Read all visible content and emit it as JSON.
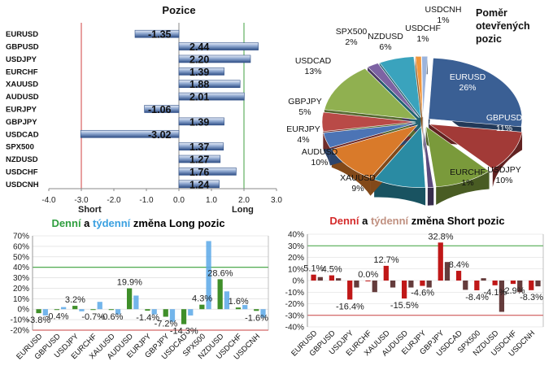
{
  "positions_chart": {
    "title": "Pozice",
    "short_label": "Short",
    "long_label": "Long",
    "xlim": [
      -4.0,
      3.0
    ],
    "ticks": [
      "-4.0",
      "-3.0",
      "-2.0",
      "-1.0",
      "0.0",
      "1.0",
      "2.0",
      "3.0"
    ],
    "rows": [
      {
        "label": "EURUSD",
        "value": -1.35,
        "text": "-1.35"
      },
      {
        "label": "GBPUSD",
        "value": 2.44,
        "text": "2.44"
      },
      {
        "label": "USDJPY",
        "value": 2.2,
        "text": "2.20"
      },
      {
        "label": "EURCHF",
        "value": 1.39,
        "text": "1.39"
      },
      {
        "label": "XAUUSD",
        "value": 1.88,
        "text": "1.88"
      },
      {
        "label": "AUDUSD",
        "value": 2.01,
        "text": "2.01"
      },
      {
        "label": "EURJPY",
        "value": -1.06,
        "text": "-1.06"
      },
      {
        "label": "GBPJPY",
        "value": 1.39,
        "text": "1.39"
      },
      {
        "label": "USDCAD",
        "value": -3.02,
        "text": "-3.02"
      },
      {
        "label": "SPX500",
        "value": 1.37,
        "text": "1.37"
      },
      {
        "label": "NZDUSD",
        "value": 1.27,
        "text": "1.27"
      },
      {
        "label": "USDCHF",
        "value": 1.76,
        "text": "1.76"
      },
      {
        "label": "USDCNH",
        "value": 1.24,
        "text": "1.24"
      }
    ]
  },
  "pie_chart": {
    "title": "Poměr otevřených pozic",
    "title_lines": [
      "Poměr",
      "otevřených",
      "pozic"
    ],
    "slices": [
      {
        "name": "EURUSD",
        "pct": "26%",
        "value": 26,
        "color": "#3a5f94"
      },
      {
        "name": "GBPUSD",
        "pct": "11%",
        "value": 11,
        "color": "#a23a37"
      },
      {
        "name": "USDJPY",
        "pct": "10%",
        "value": 10,
        "color": "#7a9a3b"
      },
      {
        "name": "EURCHF",
        "pct": "1%",
        "value": 1,
        "color": "#5b4a7d"
      },
      {
        "name": "XAUUSD",
        "pct": "9%",
        "value": 9,
        "color": "#2a8ba3"
      },
      {
        "name": "AUDUSD",
        "pct": "10%",
        "value": 10,
        "color": "#d97a2a"
      },
      {
        "name": "EURJPY",
        "pct": "4%",
        "value": 4,
        "color": "#4c74b5"
      },
      {
        "name": "GBPJPY",
        "pct": "5%",
        "value": 5,
        "color": "#b94a47"
      },
      {
        "name": "USDCAD",
        "pct": "13%",
        "value": 13,
        "color": "#90b050"
      },
      {
        "name": "SPX500",
        "pct": "2%",
        "value": 2,
        "color": "#7d63a3"
      },
      {
        "name": "NZDUSD",
        "pct": "6%",
        "value": 6,
        "color": "#3aa3bd"
      },
      {
        "name": "USDCHF",
        "pct": "1%",
        "value": 1,
        "color": "#f0963c"
      },
      {
        "name": "USDCNH",
        "pct": "1%",
        "value": 1,
        "color": "#9cb4dc"
      }
    ]
  },
  "long_chart": {
    "title_parts": [
      {
        "text": "Denní",
        "color": "#2e9e3e"
      },
      {
        "text": " a ",
        "color": "#000000"
      },
      {
        "text": "týdenní",
        "color": "#3aa0e0"
      },
      {
        "text": " změna Long pozic",
        "color": "#000000"
      }
    ],
    "ylim": [
      -20,
      70
    ],
    "ticks": [
      "70%",
      "60%",
      "50%",
      "40%",
      "30%",
      "20%",
      "10%",
      "0%",
      "-10%",
      "-20%"
    ],
    "categories": [
      "EURUSD",
      "GBPUSD",
      "USDJPY",
      "EURCHF",
      "XAUUSD",
      "AUDUSD",
      "EURJPY",
      "GBPJPY",
      "USDCAD",
      "SPX500",
      "NZDUSD",
      "USDCHF",
      "USDCNH"
    ],
    "series": [
      {
        "name": "Denní",
        "color": "#3f8f2a",
        "values": [
          -3.8,
          -0.4,
          3.2,
          -0.7,
          -0.6,
          19.9,
          -1.4,
          -7.2,
          -14.3,
          4.3,
          28.6,
          1.6,
          -1.6
        ]
      },
      {
        "name": "Týdenní",
        "color": "#5aa8e8",
        "values": [
          -6,
          2,
          -2,
          7,
          -5,
          13,
          -5,
          -12,
          -6,
          65,
          17,
          4,
          -8
        ]
      }
    ],
    "labels": [
      "-3.8%",
      "-0.4%",
      "3.2%",
      "-0.7%",
      "-0.6%",
      "19.9%",
      "-1.4%",
      "-7.2%",
      "-14.3%",
      "4.3%",
      "28.6%",
      "1.6%",
      "-1.6%"
    ]
  },
  "short_chart": {
    "title_parts": [
      {
        "text": "Denní",
        "color": "#d42a2a"
      },
      {
        "text": " a ",
        "color": "#000000"
      },
      {
        "text": "týdenní",
        "color": "#c09080"
      },
      {
        "text": " změna Short pozic",
        "color": "#000000"
      }
    ],
    "ylim": [
      -40,
      40
    ],
    "ticks": [
      "40%",
      "30%",
      "20%",
      "10%",
      "0%",
      "-10%",
      "-20%",
      "-30%",
      "-40%"
    ],
    "categories": [
      "EURUSD",
      "GBPUSD",
      "USDJPY",
      "EURCHF",
      "XAUUSD",
      "AUDUSD",
      "EURJPY",
      "GBPJPY",
      "USDCAD",
      "SPX500",
      "NZDUSD",
      "USDCHF",
      "USDCNH"
    ],
    "series": [
      {
        "name": "Denní",
        "color": "#c01818",
        "values": [
          5.1,
          4.5,
          -16.4,
          0.0,
          12.7,
          -15.5,
          -4.6,
          32.8,
          8.4,
          -8.4,
          -4.1,
          -2.9,
          -8.3
        ]
      },
      {
        "name": "Týdenní",
        "color": "#4a1a1a",
        "values": [
          3,
          2,
          -6,
          -10,
          -6,
          -6,
          -6,
          16,
          -8,
          2,
          -27,
          -10,
          -5
        ]
      }
    ],
    "labels": [
      "5.1%",
      "4.5%",
      "-16.4%",
      "0.0%",
      "12.7%",
      "-15.5%",
      "-4.6%",
      "32.8%",
      "8.4%",
      "-8.4%",
      "-4.1%",
      "-2.9%",
      "-8.3%"
    ]
  }
}
